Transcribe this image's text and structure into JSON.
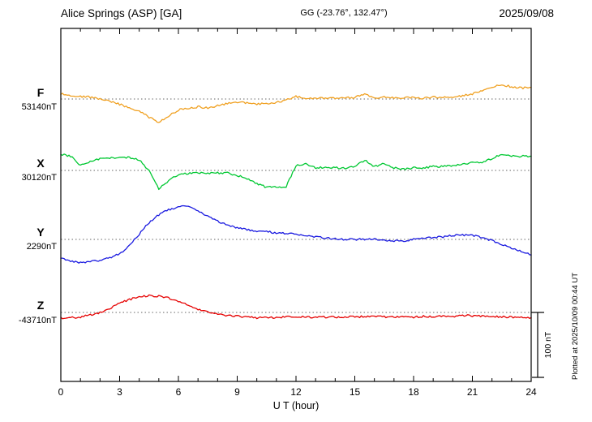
{
  "header": {
    "station_title": "Alice Springs (ASP)  [GA]",
    "coords": "GG (-23.76°, 132.47°)",
    "date": "2025/09/08"
  },
  "footer_note": "Plotted at 2025/10/09 00:44 UT",
  "scale_bar": {
    "label": "100 nT"
  },
  "chart_data": {
    "type": "line",
    "title": "Alice Springs (ASP)  [GA]",
    "xlabel": "U T (hour)",
    "x_start": 0,
    "x_step_hours": 0.5,
    "x_range": [
      0,
      24
    ],
    "x_ticks": [
      0,
      3,
      6,
      9,
      12,
      15,
      18,
      21,
      24
    ],
    "grid": "dotted horizontal baseline per channel",
    "y_scale_reference": "100 nT",
    "series": [
      {
        "name": "F",
        "base_label": "53140nT",
        "color": "#f0a020",
        "values_nT_offset": [
          8,
          6,
          4,
          3,
          0,
          -4,
          -8,
          -14,
          -19,
          -28,
          -36,
          -26,
          -17,
          -14,
          -12,
          -14,
          -10,
          -7,
          -5,
          -6,
          -8,
          -7,
          -5,
          -2,
          4,
          0,
          1,
          1,
          1,
          2,
          2,
          8,
          2,
          3,
          2,
          2,
          2,
          1,
          3,
          2,
          3,
          5,
          8,
          12,
          18,
          22,
          19,
          17,
          18
        ]
      },
      {
        "name": "X",
        "base_label": "30120nT",
        "color": "#00c832",
        "values_nT_offset": [
          25,
          22,
          8,
          14,
          18,
          19,
          20,
          20,
          16,
          0,
          -28,
          -16,
          -6,
          -5,
          -4,
          -4,
          -4,
          -4,
          -8,
          -12,
          -20,
          -26,
          -26,
          -25,
          8,
          10,
          4,
          5,
          4,
          3,
          6,
          16,
          6,
          10,
          4,
          2,
          4,
          4,
          6,
          6,
          8,
          10,
          12,
          13,
          18,
          25,
          22,
          22,
          22
        ]
      },
      {
        "name": "Y",
        "base_label": "2290nT",
        "color": "#1a1ae0",
        "values_nT_offset": [
          -29,
          -33,
          -36,
          -34,
          -32,
          -28,
          -22,
          -10,
          8,
          26,
          38,
          46,
          50,
          52,
          44,
          36,
          28,
          22,
          18,
          15,
          13,
          12,
          10,
          9,
          8,
          6,
          4,
          2,
          1,
          0,
          0,
          0,
          0,
          -1,
          -2,
          -2,
          0,
          2,
          3,
          4,
          6,
          7,
          6,
          3,
          -2,
          -8,
          -14,
          -18,
          -24
        ]
      },
      {
        "name": "Z",
        "base_label": "-43710nT",
        "color": "#e60000",
        "values_nT_offset": [
          -9,
          -8,
          -7,
          -4,
          0,
          6,
          14,
          20,
          24,
          26,
          25,
          22,
          17,
          11,
          5,
          1,
          -3,
          -5,
          -6,
          -7,
          -8,
          -8,
          -8,
          -7,
          -7,
          -7,
          -7,
          -7,
          -7,
          -7,
          -7,
          -6,
          -6,
          -7,
          -7,
          -7,
          -7,
          -6,
          -6,
          -6,
          -6,
          -5,
          -5,
          -6,
          -6,
          -7,
          -7,
          -8,
          -8
        ]
      }
    ]
  }
}
